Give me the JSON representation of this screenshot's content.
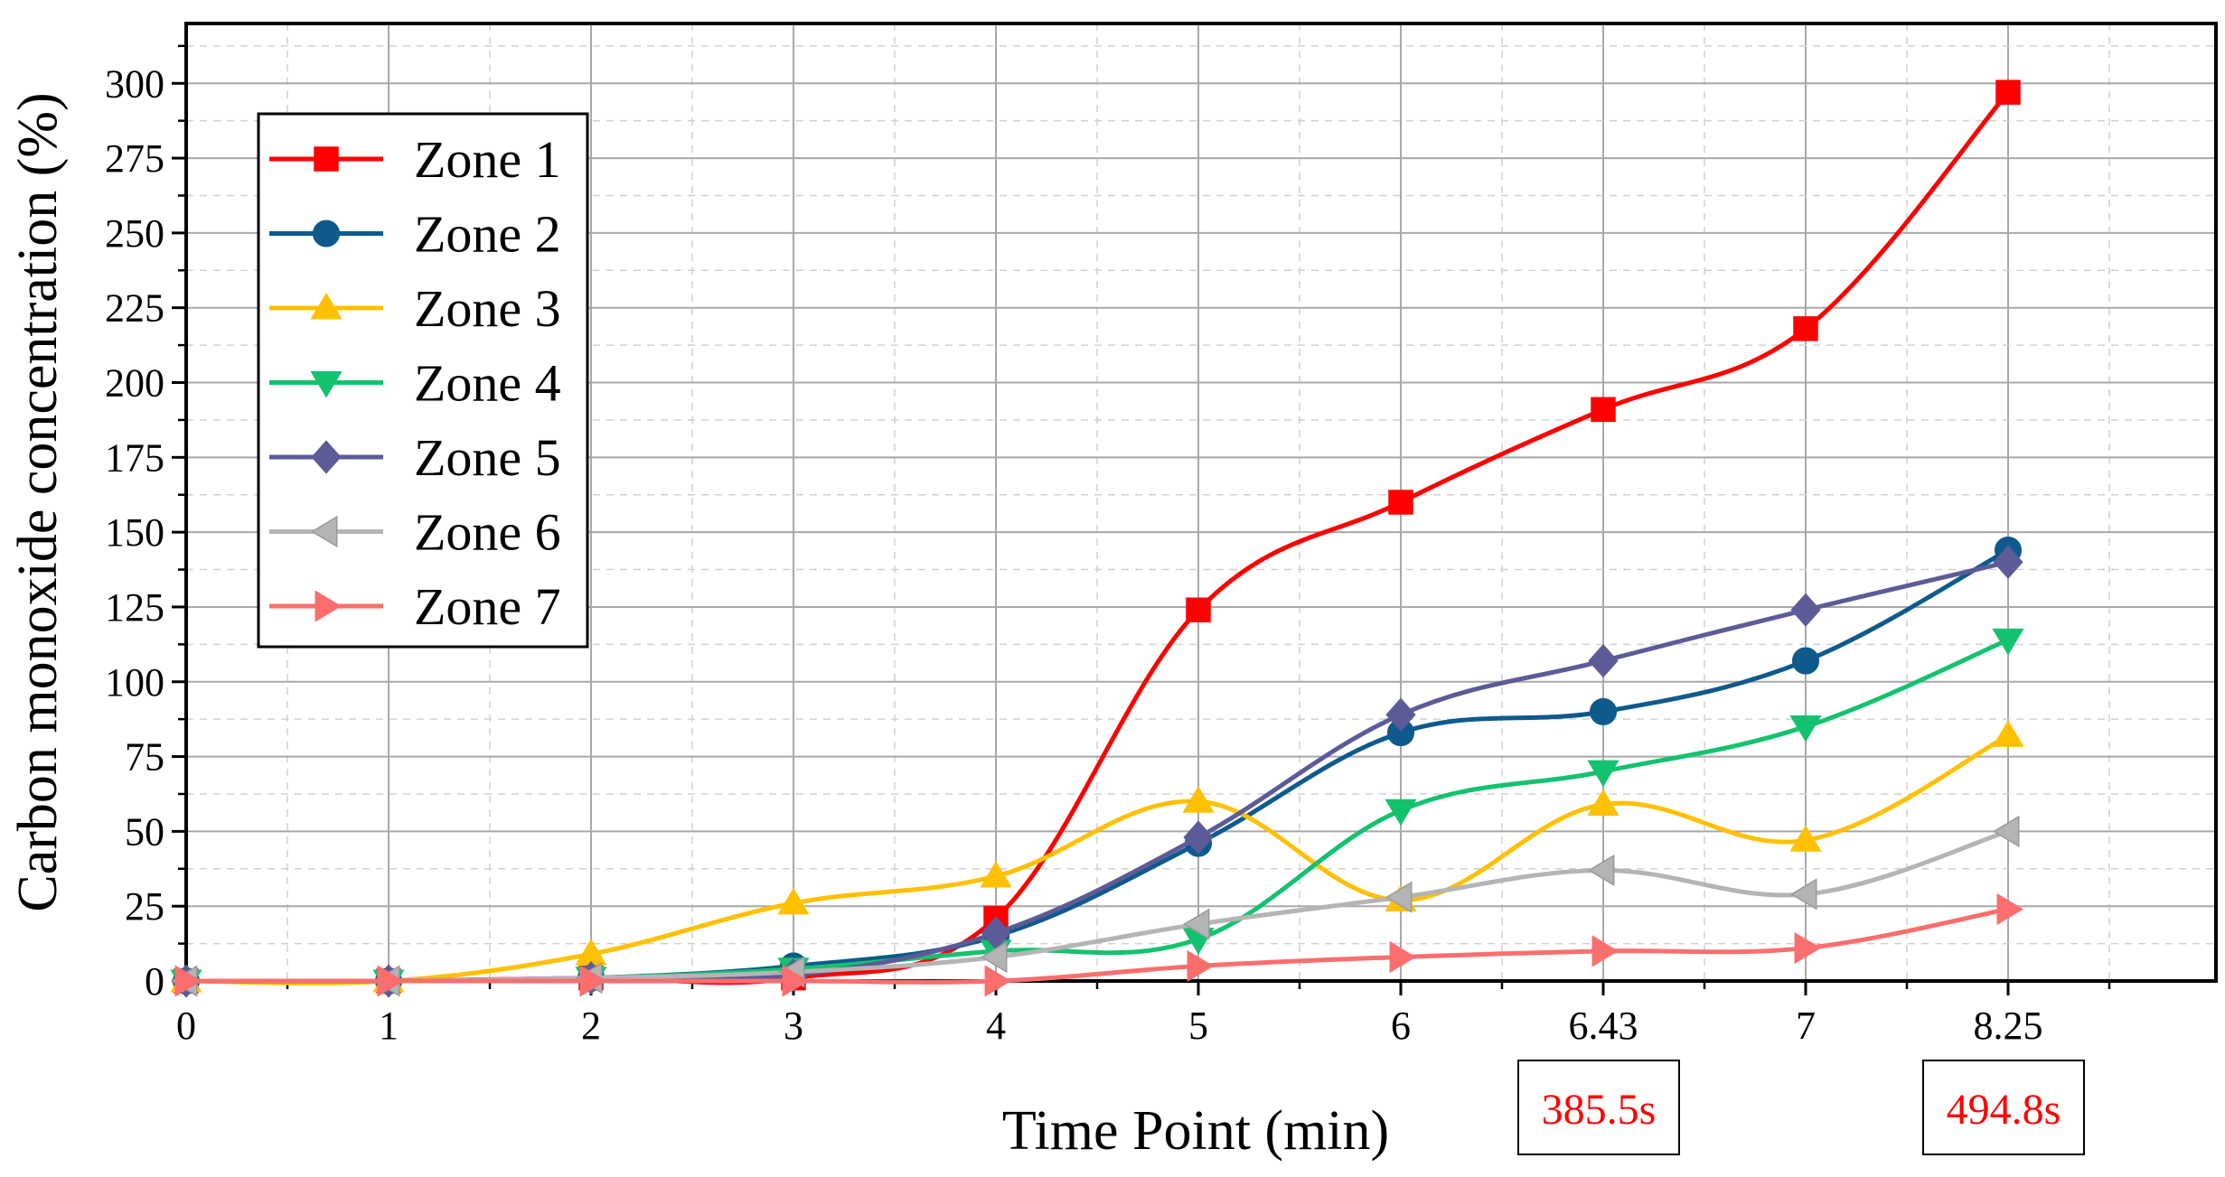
{
  "chart_data": {
    "type": "line",
    "xlabel": "Time Point (min)",
    "ylabel": "Carbon monoxide concentration (%)",
    "x_categories": [
      "0",
      "1",
      "2",
      "3",
      "4",
      "5",
      "6",
      "6.43",
      "7",
      "8.25"
    ],
    "yticks": [
      "0",
      "25",
      "50",
      "75",
      "100",
      "125",
      "150",
      "175",
      "200",
      "225",
      "250",
      "275",
      "300"
    ],
    "ylim": [
      0,
      320
    ],
    "grid": true,
    "legend_position": "top-left",
    "series": [
      {
        "name": "Zone 1",
        "color": "#ff0000",
        "marker": "square",
        "values": [
          0,
          0,
          1,
          1,
          21,
          124,
          160,
          191,
          218,
          297
        ]
      },
      {
        "name": "Zone 2",
        "color": "#0e5a8c",
        "marker": "circle",
        "values": [
          0,
          0,
          1,
          5,
          15,
          46,
          83,
          90,
          107,
          144
        ]
      },
      {
        "name": "Zone 3",
        "color": "#ffc000",
        "marker": "triangle-up",
        "values": [
          0,
          0,
          9,
          26,
          35,
          60,
          27,
          59,
          47,
          82
        ]
      },
      {
        "name": "Zone 4",
        "color": "#13c26f",
        "marker": "triangle-down",
        "values": [
          0,
          0,
          1,
          4,
          10,
          14,
          57,
          70,
          85,
          114
        ]
      },
      {
        "name": "Zone 5",
        "color": "#5d5b97",
        "marker": "diamond",
        "values": [
          0,
          0,
          1,
          2,
          16,
          48,
          89,
          107,
          124,
          140
        ]
      },
      {
        "name": "Zone 6",
        "color": "#b4b4b4",
        "marker": "triangle-left",
        "values": [
          0,
          0,
          1,
          3,
          8,
          19,
          28,
          37,
          29,
          50
        ]
      },
      {
        "name": "Zone 7",
        "color": "#fa6e6e",
        "marker": "triangle-right",
        "values": [
          0,
          0,
          0,
          0,
          0,
          5,
          8,
          10,
          11,
          24
        ]
      }
    ],
    "annotations": [
      {
        "text": "385.5s",
        "at_category": "6.43",
        "color": "#ff0000"
      },
      {
        "text": "494.8s",
        "at_category": "8.25",
        "color": "#ff0000"
      }
    ]
  }
}
